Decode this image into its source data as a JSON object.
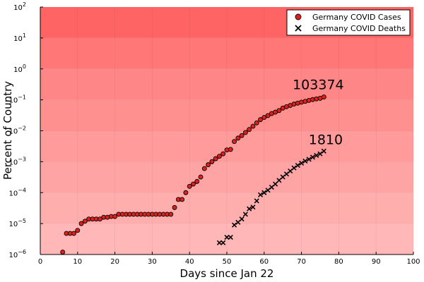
{
  "chart_data": {
    "type": "scatter",
    "xlabel": "Days since Jan 22",
    "ylabel": "Percent of Country",
    "xlim": [
      0,
      100
    ],
    "ylim_exponent": [
      -6,
      2
    ],
    "y_scale": "log10",
    "x_ticks": [
      "0",
      "10",
      "20",
      "30",
      "40",
      "50",
      "60",
      "70",
      "80",
      "90",
      "100"
    ],
    "x_tick_values": [
      0,
      10,
      20,
      30,
      40,
      50,
      60,
      70,
      80,
      90,
      100
    ],
    "y_tick_exponents": [
      -6,
      -5,
      -4,
      -3,
      -2,
      -1,
      0,
      1,
      2
    ],
    "y_tick_base": "10",
    "y_tick_exponent_labels": [
      "−6",
      "−5",
      "−4",
      "−3",
      "−2",
      "−1",
      "0",
      "1",
      "2"
    ],
    "grid": true,
    "legend_position": "top-right",
    "background_bands": [
      "#ffb7b7",
      "#ffaeae",
      "#ffa4a4",
      "#ff9b9b",
      "#ff9090",
      "#ff8686",
      "#ff7777",
      "#ff6464"
    ],
    "series": [
      {
        "name": "Germany COVID Cases",
        "marker": "circle",
        "color": "#e0201b",
        "x": [
          6,
          7,
          8,
          9,
          10,
          11,
          12,
          13,
          14,
          15,
          16,
          17,
          18,
          19,
          20,
          21,
          22,
          23,
          24,
          25,
          26,
          27,
          28,
          29,
          30,
          31,
          32,
          33,
          34,
          35,
          36,
          37,
          38,
          39,
          40,
          41,
          42,
          43,
          44,
          45,
          46,
          47,
          48,
          49,
          50,
          51,
          52,
          53,
          54,
          55,
          56,
          57,
          58,
          59,
          60,
          61,
          62,
          63,
          64,
          65,
          66,
          67,
          68,
          69,
          70,
          71,
          72,
          73,
          74,
          75,
          76
        ],
        "y": [
          1.2e-06,
          4.8e-06,
          4.8e-06,
          4.8e-06,
          6e-06,
          1e-05,
          1.2e-05,
          1.4e-05,
          1.4e-05,
          1.4e-05,
          1.4e-05,
          1.6e-05,
          1.6e-05,
          1.7e-05,
          1.7e-05,
          2e-05,
          2e-05,
          2e-05,
          2e-05,
          2e-05,
          2e-05,
          2e-05,
          2e-05,
          2e-05,
          2e-05,
          2e-05,
          2e-05,
          2e-05,
          2e-05,
          2e-05,
          3.3e-05,
          6e-05,
          6e-05,
          0.0001,
          0.00016,
          0.00019,
          0.00023,
          0.00032,
          0.0006,
          0.0008,
          0.001,
          0.00125,
          0.0015,
          0.0018,
          0.0024,
          0.0025,
          0.0045,
          0.0058,
          0.007,
          0.0088,
          0.011,
          0.014,
          0.018,
          0.023,
          0.027,
          0.031,
          0.036,
          0.04,
          0.045,
          0.054,
          0.06,
          0.066,
          0.073,
          0.078,
          0.084,
          0.089,
          0.096,
          0.102,
          0.107,
          0.112,
          0.124
        ]
      },
      {
        "name": "Germany COVID Deaths",
        "marker": "x",
        "color": "#000000",
        "x": [
          48,
          49,
          50,
          51,
          52,
          53,
          54,
          55,
          56,
          57,
          58,
          59,
          60,
          61,
          62,
          63,
          64,
          65,
          66,
          67,
          68,
          69,
          70,
          71,
          72,
          73,
          74,
          75,
          76
        ],
        "y": [
          2.4e-06,
          2.4e-06,
          3.6e-06,
          3.6e-06,
          9e-06,
          1.1e-05,
          1.4e-05,
          2e-05,
          3e-05,
          3.4e-05,
          5.4e-05,
          8.5e-05,
          0.0001,
          0.00012,
          0.00015,
          0.00019,
          0.00025,
          0.00032,
          0.0004,
          0.0005,
          0.00063,
          0.00076,
          0.0009,
          0.00105,
          0.0012,
          0.0014,
          0.0016,
          0.0018,
          0.0022
        ]
      }
    ],
    "annotations": [
      {
        "text": "103374",
        "x": 74.5,
        "y": 0.22
      },
      {
        "text": "1810",
        "x": 76.5,
        "y": 0.0037
      }
    ]
  }
}
